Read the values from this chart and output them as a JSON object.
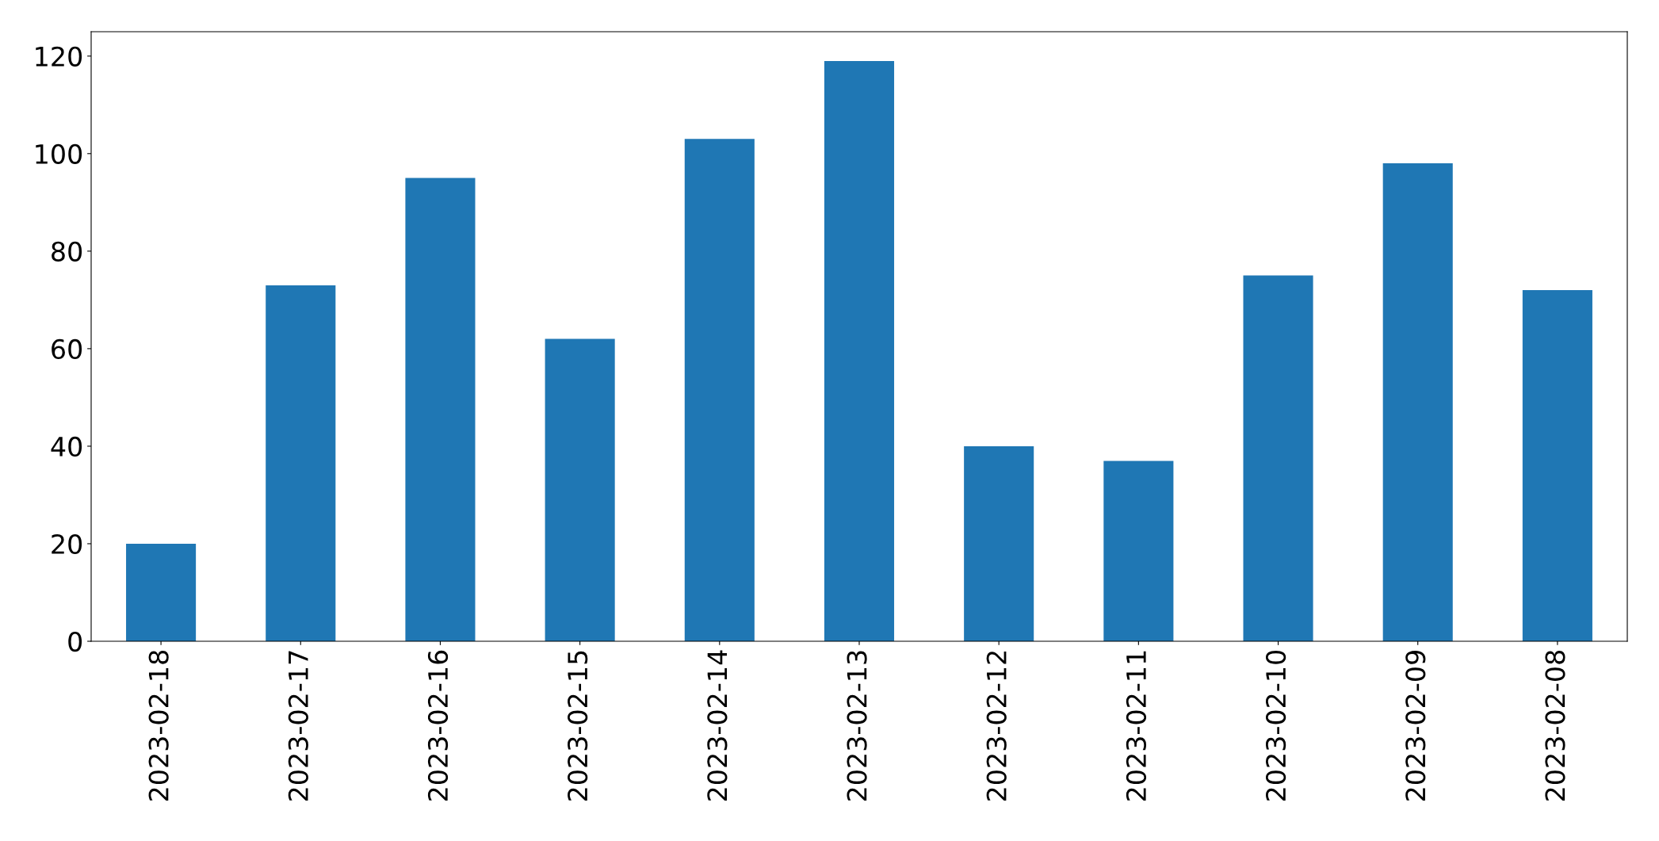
{
  "chart_data": {
    "type": "bar",
    "categories": [
      "2023-02-18",
      "2023-02-17",
      "2023-02-16",
      "2023-02-15",
      "2023-02-14",
      "2023-02-13",
      "2023-02-12",
      "2023-02-11",
      "2023-02-10",
      "2023-02-09",
      "2023-02-08"
    ],
    "values": [
      20,
      73,
      95,
      62,
      103,
      119,
      40,
      37,
      75,
      98,
      72
    ],
    "color": "#1f77b4",
    "ylim": [
      0,
      125
    ],
    "yticks": [
      0,
      20,
      40,
      60,
      80,
      100,
      120
    ],
    "grid": false
  }
}
